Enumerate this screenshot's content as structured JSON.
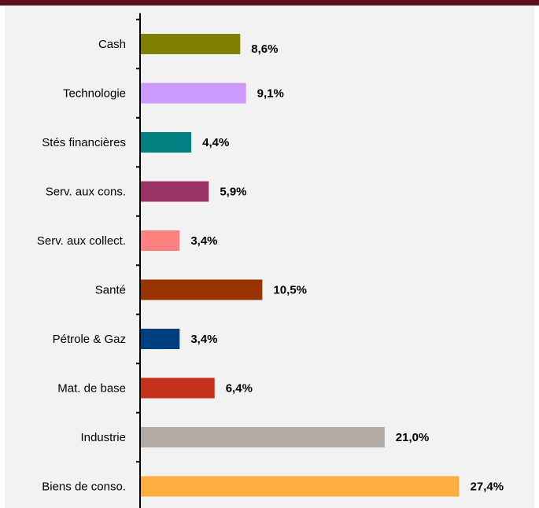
{
  "chart_data": {
    "type": "bar",
    "orientation": "horizontal",
    "categories": [
      "Cash",
      "Technologie",
      "Stés financières",
      "Serv. aux cons.",
      "Serv. aux collect.",
      "Santé",
      "Pétrole & Gaz",
      "Mat. de base",
      "Industrie",
      "Biens de conso."
    ],
    "values": [
      8.6,
      9.1,
      4.4,
      5.9,
      3.4,
      10.5,
      3.4,
      6.4,
      21.0,
      27.4
    ],
    "value_labels": [
      "8,6%",
      "9,1%",
      "4,4%",
      "5,9%",
      "3,4%",
      "10,5%",
      "3,4%",
      "6,4%",
      "21,0%",
      "27,4%"
    ],
    "colors": [
      "#808000",
      "#cc99ff",
      "#008080",
      "#993366",
      "#ff8080",
      "#993300",
      "#003f7f",
      "#c4301c",
      "#b2aaa5",
      "#ffad3f"
    ],
    "unit": "%",
    "xlim": [
      0,
      28
    ],
    "grid": false,
    "legend": "none",
    "background": "#f2f2f2",
    "frame_color": "#5c0f1c"
  }
}
